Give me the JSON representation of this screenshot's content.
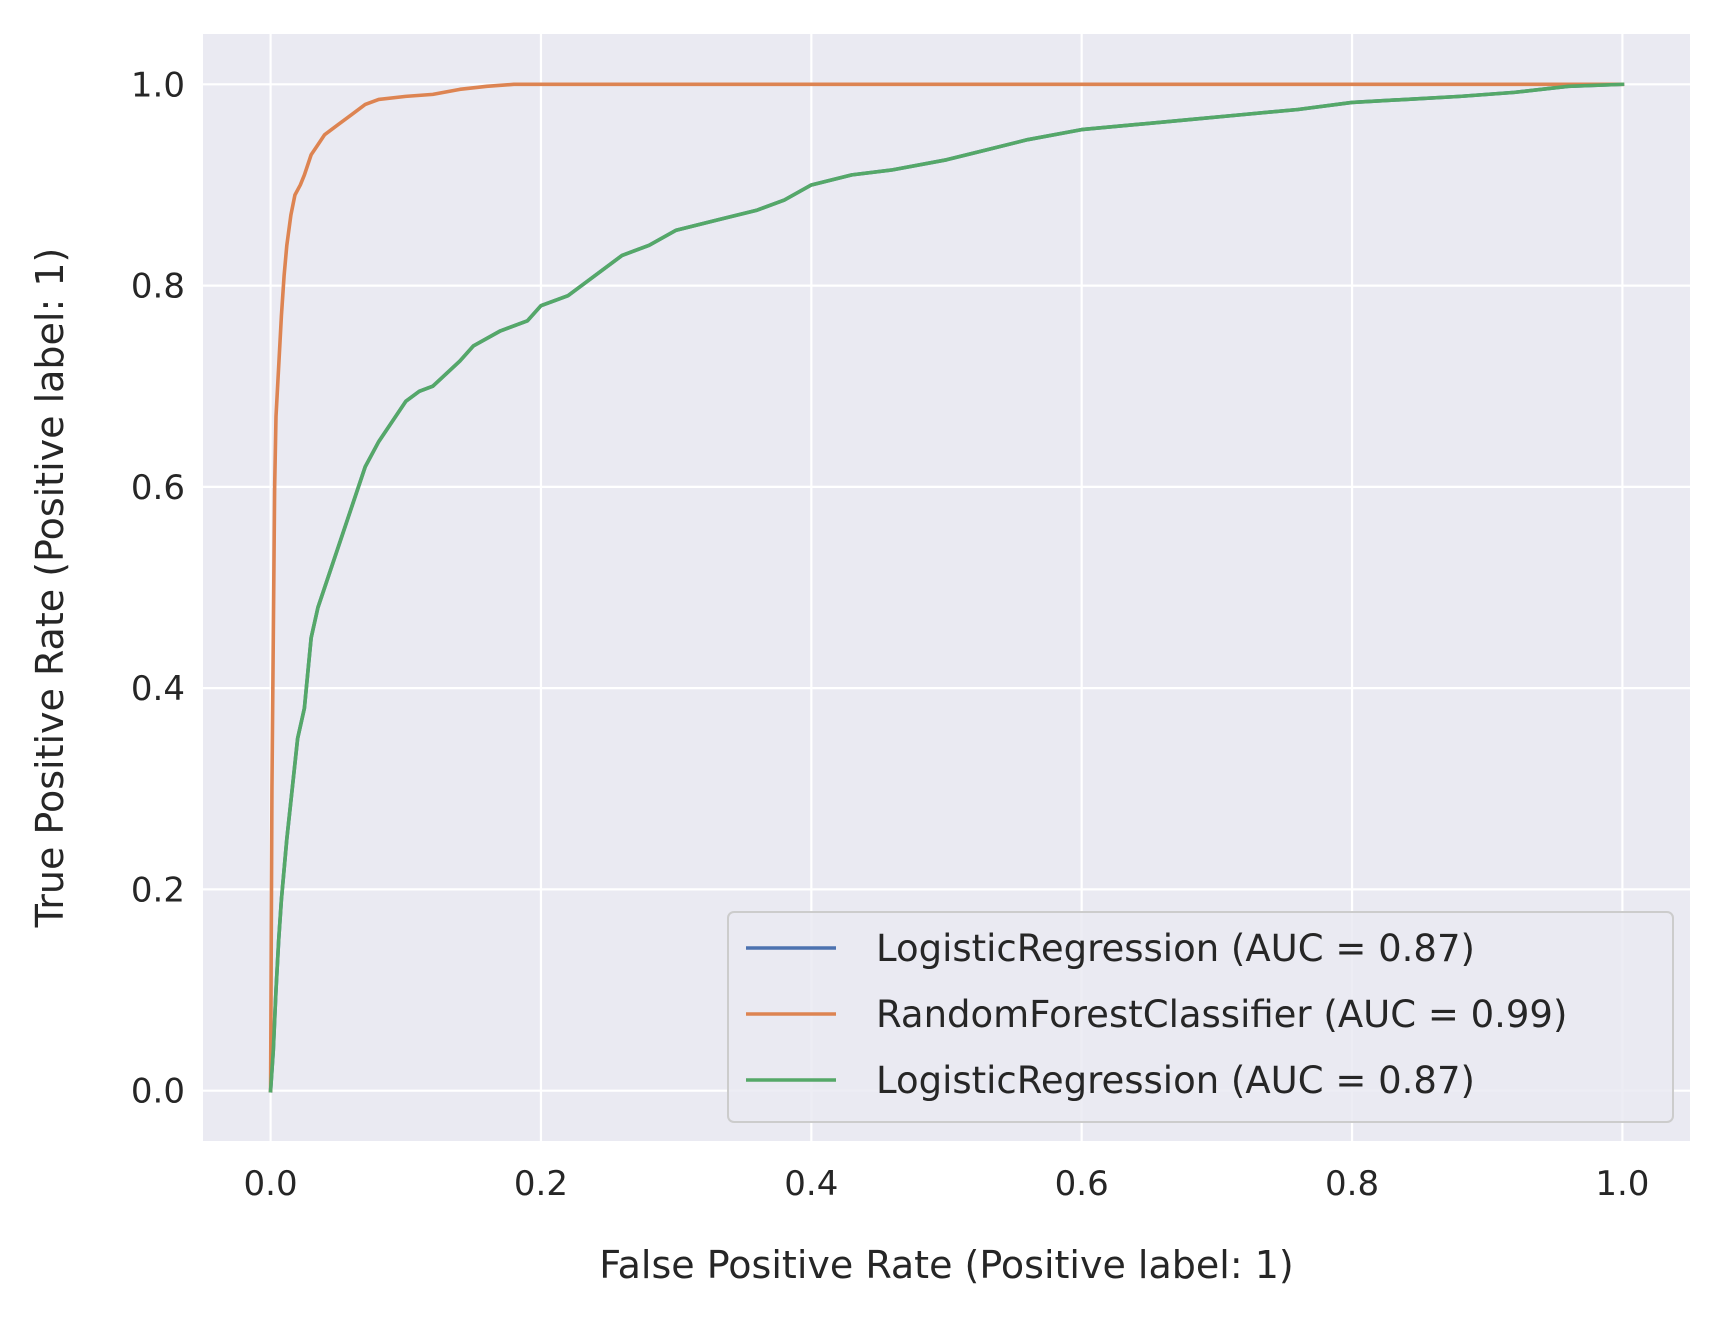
{
  "chart_data": {
    "type": "line",
    "xlabel": "False Positive Rate (Positive label: 1)",
    "ylabel": "True Positive Rate (Positive label: 1)",
    "xlim": [
      -0.05,
      1.05
    ],
    "ylim": [
      -0.05,
      1.05
    ],
    "xticks": [
      "0.0",
      "0.2",
      "0.4",
      "0.6",
      "0.8",
      "1.0"
    ],
    "yticks": [
      "0.0",
      "0.2",
      "0.4",
      "0.6",
      "0.8",
      "1.0"
    ],
    "grid": true,
    "legend_position": "lower-right",
    "series": [
      {
        "name": "LogisticRegression (AUC = 0.87)",
        "color": "#4c72b0",
        "x": [
          0.0,
          0.002,
          0.004,
          0.006,
          0.008,
          0.012,
          0.016,
          0.02,
          0.025,
          0.03,
          0.035,
          0.04,
          0.05,
          0.06,
          0.07,
          0.08,
          0.09,
          0.1,
          0.11,
          0.12,
          0.14,
          0.15,
          0.17,
          0.19,
          0.2,
          0.22,
          0.24,
          0.26,
          0.28,
          0.3,
          0.33,
          0.36,
          0.38,
          0.4,
          0.43,
          0.46,
          0.5,
          0.53,
          0.56,
          0.6,
          0.64,
          0.68,
          0.72,
          0.76,
          0.8,
          0.84,
          0.88,
          0.92,
          0.96,
          1.0
        ],
        "y": [
          0.0,
          0.04,
          0.1,
          0.15,
          0.19,
          0.25,
          0.3,
          0.35,
          0.38,
          0.45,
          0.48,
          0.5,
          0.54,
          0.58,
          0.62,
          0.645,
          0.665,
          0.685,
          0.695,
          0.7,
          0.725,
          0.74,
          0.755,
          0.765,
          0.78,
          0.79,
          0.81,
          0.83,
          0.84,
          0.855,
          0.865,
          0.875,
          0.885,
          0.9,
          0.91,
          0.915,
          0.925,
          0.935,
          0.945,
          0.955,
          0.96,
          0.965,
          0.97,
          0.975,
          0.982,
          0.985,
          0.988,
          0.992,
          0.998,
          1.0
        ]
      },
      {
        "name": "RandomForestClassifier (AUC = 0.99)",
        "color": "#dd8452",
        "x": [
          0.0,
          0.001,
          0.002,
          0.003,
          0.004,
          0.006,
          0.008,
          0.01,
          0.012,
          0.015,
          0.018,
          0.022,
          0.025,
          0.03,
          0.035,
          0.04,
          0.05,
          0.06,
          0.07,
          0.08,
          0.1,
          0.12,
          0.14,
          0.16,
          0.18,
          0.2,
          0.3,
          0.5,
          0.8,
          1.0
        ],
        "y": [
          0.0,
          0.3,
          0.45,
          0.6,
          0.67,
          0.72,
          0.77,
          0.81,
          0.84,
          0.87,
          0.89,
          0.9,
          0.91,
          0.93,
          0.94,
          0.95,
          0.96,
          0.97,
          0.98,
          0.985,
          0.988,
          0.99,
          0.995,
          0.998,
          1.0,
          1.0,
          1.0,
          1.0,
          1.0,
          1.0
        ]
      },
      {
        "name": "LogisticRegression (AUC = 0.87)",
        "color": "#55a868",
        "x": [
          0.0,
          0.002,
          0.004,
          0.006,
          0.008,
          0.012,
          0.016,
          0.02,
          0.025,
          0.03,
          0.035,
          0.04,
          0.05,
          0.06,
          0.07,
          0.08,
          0.09,
          0.1,
          0.11,
          0.12,
          0.14,
          0.15,
          0.17,
          0.19,
          0.2,
          0.22,
          0.24,
          0.26,
          0.28,
          0.3,
          0.33,
          0.36,
          0.38,
          0.4,
          0.43,
          0.46,
          0.5,
          0.53,
          0.56,
          0.6,
          0.64,
          0.68,
          0.72,
          0.76,
          0.8,
          0.84,
          0.88,
          0.92,
          0.96,
          1.0
        ],
        "y": [
          0.0,
          0.04,
          0.1,
          0.15,
          0.19,
          0.25,
          0.3,
          0.35,
          0.38,
          0.45,
          0.48,
          0.5,
          0.54,
          0.58,
          0.62,
          0.645,
          0.665,
          0.685,
          0.695,
          0.7,
          0.725,
          0.74,
          0.755,
          0.765,
          0.78,
          0.79,
          0.81,
          0.83,
          0.84,
          0.855,
          0.865,
          0.875,
          0.885,
          0.9,
          0.91,
          0.915,
          0.925,
          0.935,
          0.945,
          0.955,
          0.96,
          0.965,
          0.97,
          0.975,
          0.982,
          0.985,
          0.988,
          0.992,
          0.998,
          1.0
        ]
      }
    ],
    "colors": {
      "plot_background": "#eaeaf2",
      "grid": "#ffffff",
      "legend_background": "#eaeaf2",
      "legend_border": "#cccccc"
    }
  }
}
